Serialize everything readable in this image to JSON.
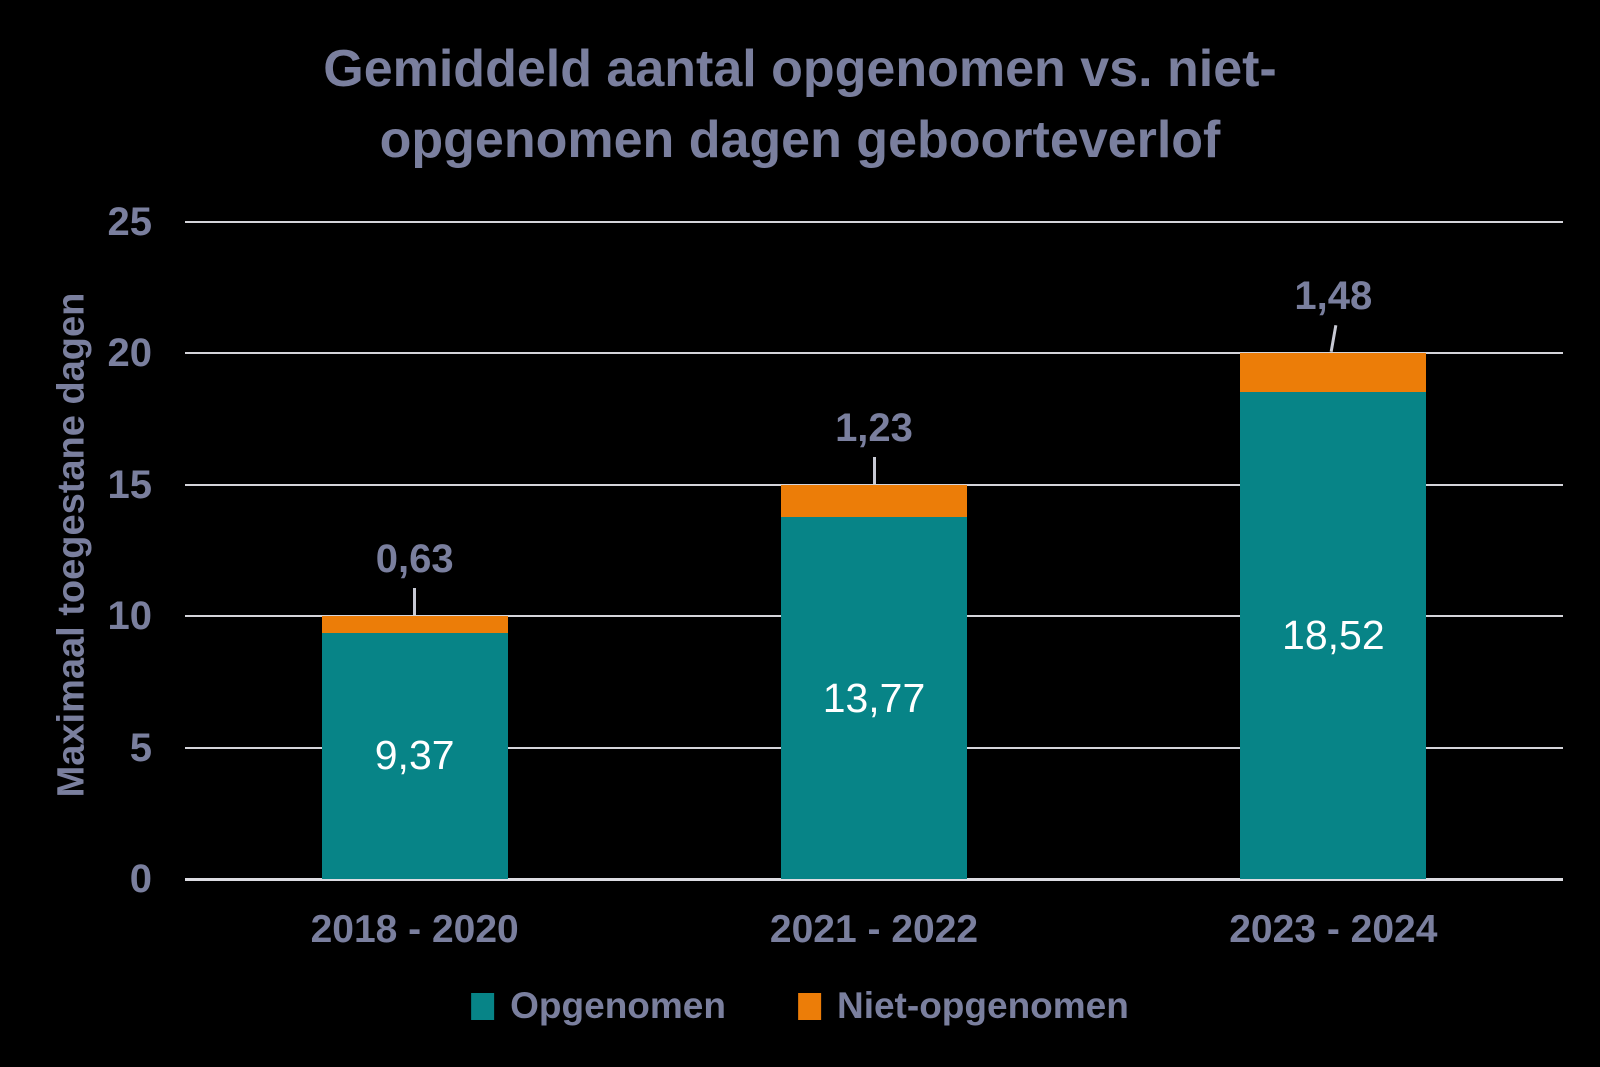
{
  "chart_data": {
    "type": "bar",
    "stacked": true,
    "title": "Gemiddeld aantal opgenomen vs. niet-opgenomen dagen geboorteverlof",
    "title_lines": [
      "Gemiddeld aantal opgenomen vs. niet-",
      "opgenomen dagen geboorteverlof"
    ],
    "ylabel": "Maximaal toegestane dagen",
    "xlabel": "",
    "ylim": [
      0,
      25
    ],
    "yticks": [
      0,
      5,
      10,
      15,
      20,
      25
    ],
    "grid": true,
    "legend_position": "bottom",
    "categories": [
      "2018 - 2020",
      "2021 - 2022",
      "2023 - 2024"
    ],
    "series": [
      {
        "name": "Opgenomen",
        "color": "#078487",
        "values": [
          9.37,
          13.77,
          18.52
        ],
        "value_labels": [
          "9,37",
          "13,77",
          "18,52"
        ]
      },
      {
        "name": "Niet-opgenomen",
        "color": "#EC7D08",
        "values": [
          0.63,
          1.23,
          1.48
        ],
        "value_labels": [
          "0,63",
          "1,23",
          "1,48"
        ]
      }
    ],
    "totals": [
      10,
      15,
      20
    ]
  },
  "style": {
    "background": "#000000",
    "text_color": "#7A7F9E",
    "bar_label_color": "#FFFFFF",
    "gridline_color": "#D4D4DA",
    "baseline_color": "#DCDCE2",
    "leader_color": "#C8CAD4"
  }
}
